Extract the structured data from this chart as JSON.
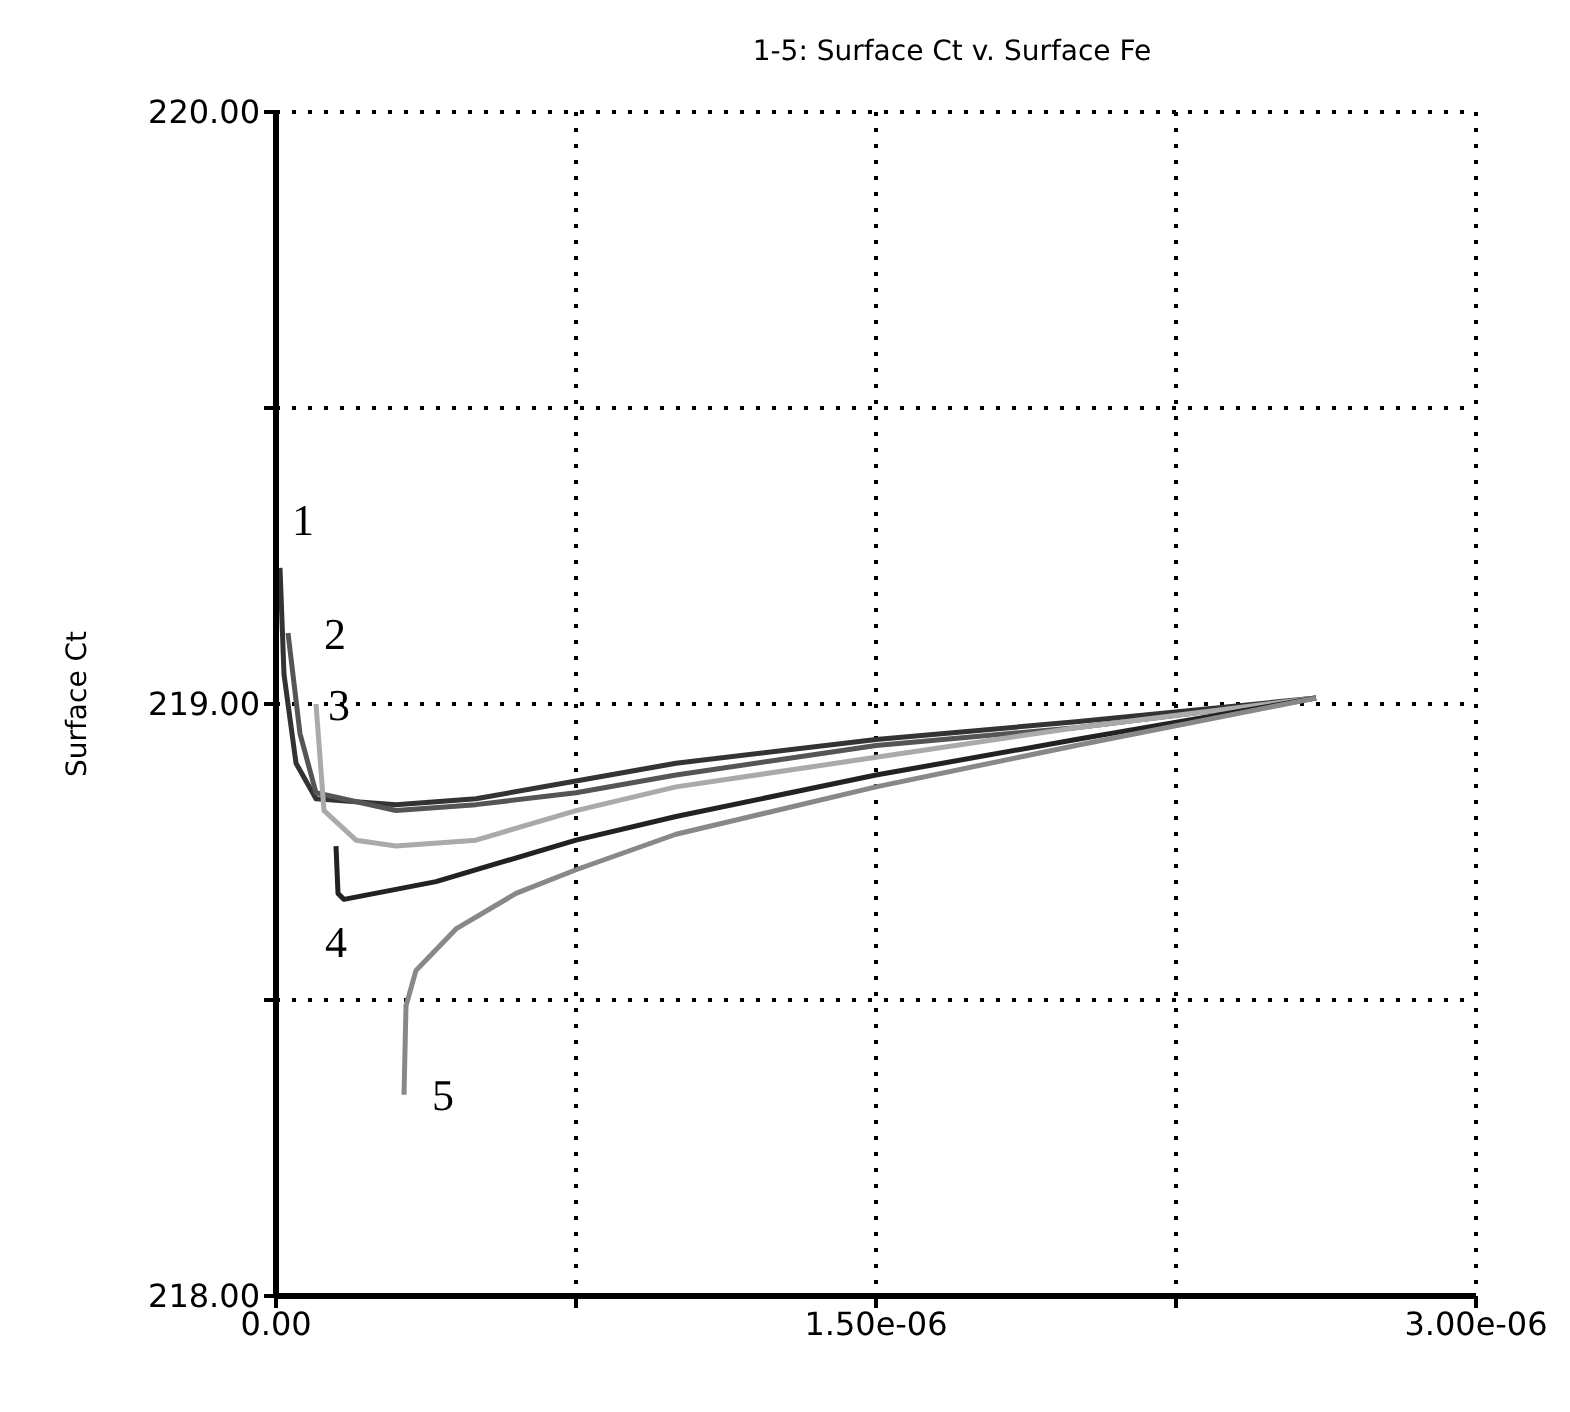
{
  "chart_data": {
    "type": "line",
    "title": "1-5: Surface Ct v. Surface Fe",
    "ylabel": "Surface Ct",
    "xlim": [
      0,
      3e-06
    ],
    "ylim": [
      218,
      220
    ],
    "xticks": [
      {
        "value": 0,
        "label": "0.00"
      },
      {
        "value": 7.5e-07,
        "label": null
      },
      {
        "value": 1.5e-06,
        "label": "1.50e-06"
      },
      {
        "value": 2.25e-06,
        "label": null
      },
      {
        "value": 3e-06,
        "label": "3.00e-06"
      }
    ],
    "yticks": [
      {
        "value": 218,
        "label": "218.00"
      },
      {
        "value": 218.5,
        "label": null
      },
      {
        "value": 219,
        "label": "219.00"
      },
      {
        "value": 219.5,
        "label": null
      },
      {
        "value": 220,
        "label": "220.00"
      }
    ],
    "grid": true,
    "line_style": "solid",
    "marker": "none",
    "series": [
      {
        "name": "1",
        "color": "#333333",
        "x": [
          1e-08,
          2e-08,
          5e-08,
          1e-07,
          3e-07,
          5e-07,
          7.5e-07,
          1e-06,
          1.5e-06,
          2e-06,
          2.6e-06
        ],
        "values": [
          219.23,
          219.05,
          218.9,
          218.84,
          218.83,
          218.84,
          218.87,
          218.9,
          218.94,
          218.97,
          219.01
        ]
      },
      {
        "name": "2",
        "color": "#555555",
        "x": [
          3e-08,
          6e-08,
          1e-07,
          3e-07,
          5e-07,
          7.5e-07,
          1e-06,
          1.5e-06,
          2e-06,
          2.6e-06
        ],
        "values": [
          219.12,
          218.95,
          218.85,
          218.82,
          218.83,
          218.85,
          218.88,
          218.93,
          218.96,
          219.01
        ]
      },
      {
        "name": "3",
        "color": "#aaaaaa",
        "x": [
          1e-07,
          1.2e-07,
          2e-07,
          3e-07,
          5e-07,
          7.5e-07,
          1e-06,
          1.5e-06,
          2e-06,
          2.6e-06
        ],
        "values": [
          219.0,
          218.82,
          218.77,
          218.76,
          218.77,
          218.82,
          218.86,
          218.91,
          218.96,
          219.01
        ]
      },
      {
        "name": "4",
        "color": "#222222",
        "x": [
          1.5e-07,
          1.55e-07,
          1.7e-07,
          4e-07,
          7.5e-07,
          1e-06,
          1.5e-06,
          2e-06,
          2.6e-06
        ],
        "values": [
          218.76,
          218.68,
          218.67,
          218.7,
          218.77,
          218.81,
          218.88,
          218.94,
          219.01
        ]
      },
      {
        "name": "5",
        "color": "#888888",
        "x": [
          3.2e-07,
          3.25e-07,
          3.5e-07,
          4.5e-07,
          6e-07,
          7.5e-07,
          1e-06,
          1.5e-06,
          2e-06,
          2.6e-06
        ],
        "values": [
          218.34,
          218.49,
          218.55,
          218.62,
          218.68,
          218.72,
          218.78,
          218.86,
          218.93,
          219.01
        ]
      }
    ]
  }
}
